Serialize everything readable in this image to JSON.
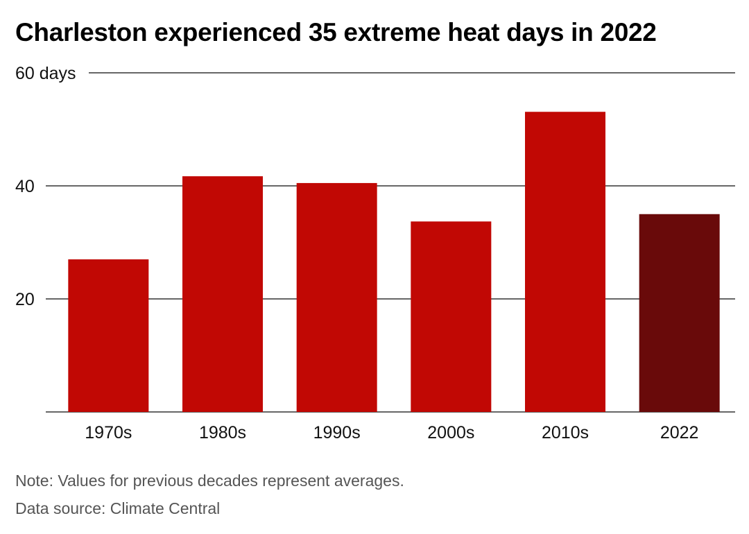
{
  "chart_data": {
    "type": "bar",
    "title": "Charleston experienced 35 extreme heat days in 2022",
    "categories": [
      "1970s",
      "1980s",
      "1990s",
      "2000s",
      "2010s",
      "2022"
    ],
    "values": [
      27,
      41.7,
      40.5,
      33.7,
      53.1,
      35
    ],
    "ylim": [
      0,
      60
    ],
    "yticks": [
      20,
      40,
      60
    ],
    "ytick_labels": [
      "20",
      "40",
      "60 days"
    ],
    "grid": true,
    "colors": {
      "bar": "#c10804",
      "highlight_bar": "#690a0a",
      "gridline": "#333333"
    },
    "highlight_index": 5,
    "note": "Note: Values for previous decades represent averages.",
    "source": "Data source: Climate Central"
  }
}
